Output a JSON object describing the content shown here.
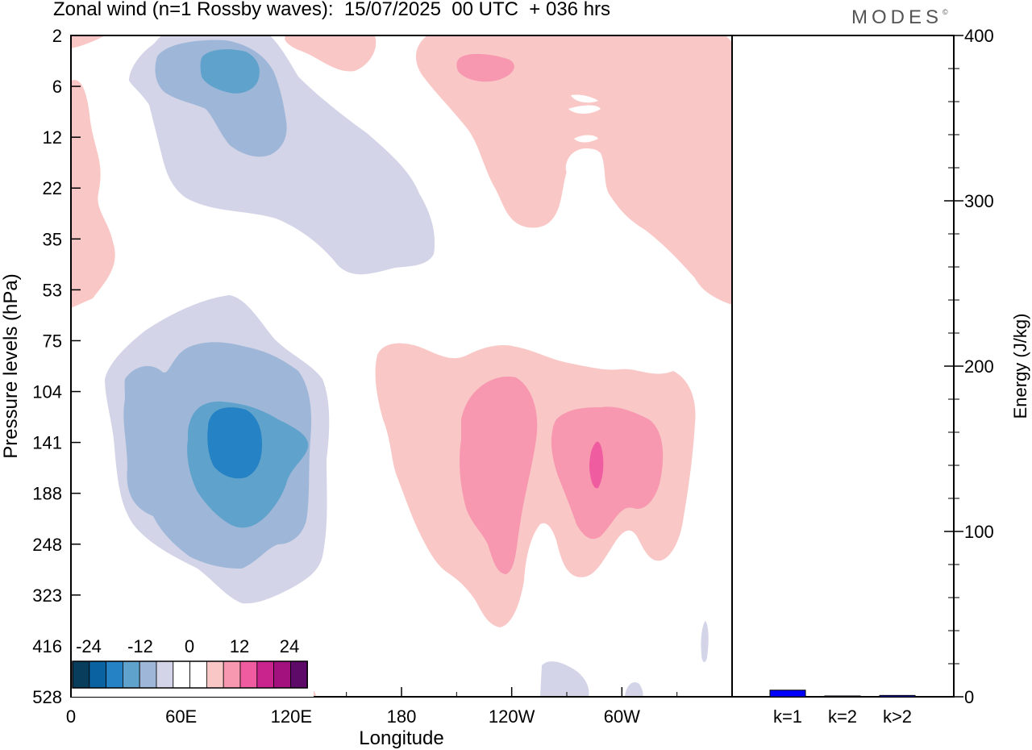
{
  "header": {
    "title": "Zonal wind (n=1 Rossby waves):  15/07/2025  00 UTC  + 036 hrs",
    "logo": "MODES"
  },
  "colors": {
    "scale": [
      "#083d5c",
      "#0b62a0",
      "#2582c5",
      "#5fa2cc",
      "#9eb7d8",
      "#d3d4e7",
      "#ffffff",
      "#ffffff",
      "#f9c8c6",
      "#f798b0",
      "#ef5da0",
      "#c9238d",
      "#a3117f",
      "#5d0a69"
    ],
    "energy_bar": "#0000ff"
  },
  "chart_data": [
    {
      "type": "heatmap",
      "title": "Zonal wind (n=1 Rossby waves):  15/07/2025  00 UTC  + 036 hrs",
      "xlabel": "Longitude",
      "ylabel": "Pressure levels (hPa)",
      "x_ticks": [
        "0",
        "60E",
        "120E",
        "180",
        "120W",
        "60W"
      ],
      "y_ticks": [
        "2",
        "6",
        "12",
        "22",
        "35",
        "53",
        "75",
        "104",
        "141",
        "188",
        "248",
        "323",
        "416",
        "528"
      ],
      "colorbar_labels": [
        "-24",
        "-12",
        "0",
        "12",
        "24"
      ],
      "colorbar_levels": [
        -30,
        -27,
        -24,
        -21,
        -18,
        -15,
        -12,
        -9,
        -6,
        -3,
        0,
        3,
        6,
        9,
        12,
        15,
        18,
        21,
        24,
        27,
        30
      ],
      "features": [
        {
          "sign": "negative",
          "lon_center": 80,
          "pressure_center": 141,
          "min_value": -18
        },
        {
          "sign": "negative",
          "lon_center": 75,
          "pressure_center": 6,
          "min_value": -9
        },
        {
          "sign": "positive",
          "lon_center": 235,
          "pressure_center": 141,
          "max_value": 12
        },
        {
          "sign": "positive",
          "lon_center": 292,
          "pressure_center": 141,
          "max_value": 12
        },
        {
          "sign": "positive",
          "lon_center": 202,
          "pressure_center": 4,
          "max_value": 6
        },
        {
          "sign": "positive",
          "lon_center": 340,
          "pressure_center": 20,
          "max_value": 3
        }
      ]
    },
    {
      "type": "bar",
      "ylabel": "Energy (J/kg)",
      "categories": [
        "k=1",
        "k=2",
        "k>2"
      ],
      "values": [
        4,
        0.5,
        0.8
      ],
      "ylim": [
        0,
        400
      ],
      "y_ticks": [
        "0",
        "100",
        "200",
        "300",
        "400"
      ]
    }
  ]
}
